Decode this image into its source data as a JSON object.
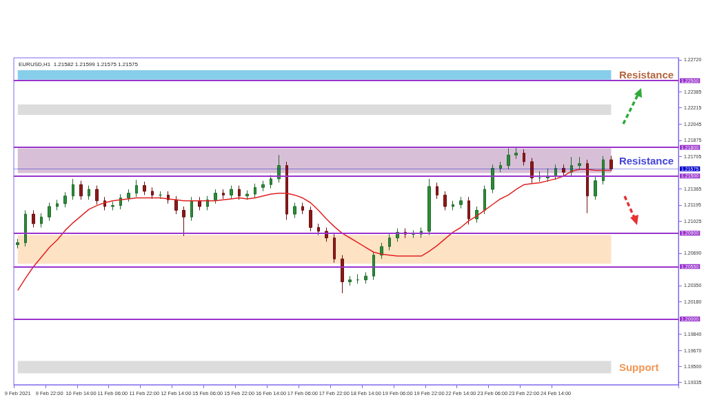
{
  "chart_data": {
    "type": "candlestick",
    "title": "EURUSD,H1  1.21582 1.21599 1.21575 1.21575",
    "categories": [
      "9 Feb 2021",
      null,
      null,
      null,
      "9 Feb 22:00",
      null,
      null,
      null,
      "10 Feb 14:00",
      null,
      null,
      null,
      "11 Feb 06:00",
      null,
      null,
      null,
      "11 Feb 22:00",
      null,
      null,
      null,
      "12 Feb 14:00",
      null,
      null,
      null,
      "15 Feb 06:00",
      null,
      null,
      null,
      "15 Feb 22:00",
      null,
      null,
      null,
      "16 Feb 14:00",
      null,
      null,
      null,
      "17 Feb 06:00",
      null,
      null,
      null,
      "17 Feb 22:00",
      null,
      null,
      null,
      "18 Feb 14:00",
      null,
      null,
      null,
      "19 Feb 06:00",
      null,
      null,
      null,
      "19 Feb 22:00",
      null,
      null,
      null,
      "22 Feb 14:00",
      null,
      null,
      null,
      "23 Feb 06:00",
      null,
      null,
      null,
      "23 Feb 22:00",
      null,
      null,
      null,
      "24 Feb 14:00",
      null,
      null,
      null,
      null,
      null,
      null,
      null,
      null,
      null,
      null,
      null,
      null,
      null,
      null,
      null
    ],
    "ohlc": [
      [
        1.2078,
        1.2084,
        1.2074,
        1.208
      ],
      [
        1.208,
        1.2114,
        1.2076,
        1.211
      ],
      [
        1.211,
        1.2114,
        1.2096,
        1.21
      ],
      [
        1.21,
        1.2111,
        1.2096,
        1.2107
      ],
      [
        1.2107,
        1.2122,
        1.2103,
        1.2118
      ],
      [
        1.2118,
        1.2125,
        1.2114,
        1.2121
      ],
      [
        1.2121,
        1.2133,
        1.2117,
        1.2129
      ],
      [
        1.2129,
        1.2147,
        1.2125,
        1.2141
      ],
      [
        1.2141,
        1.2145,
        1.2125,
        1.2129
      ],
      [
        1.2129,
        1.214,
        1.2125,
        1.2136
      ],
      [
        1.2136,
        1.214,
        1.212,
        1.2124
      ],
      [
        1.2124,
        1.2128,
        1.2114,
        1.2118
      ],
      [
        1.2118,
        1.2123,
        1.2114,
        1.2119
      ],
      [
        1.2119,
        1.2131,
        1.2115,
        1.2127
      ],
      [
        1.2127,
        1.2136,
        1.2123,
        1.2132
      ],
      [
        1.2132,
        1.2146,
        1.2128,
        1.214
      ],
      [
        1.214,
        1.2144,
        1.213,
        1.2134
      ],
      [
        1.2134,
        1.2138,
        1.2126,
        1.213
      ],
      [
        1.213,
        1.2134,
        1.2126,
        1.213
      ],
      [
        1.213,
        1.2134,
        1.2121,
        1.2125
      ],
      [
        1.2125,
        1.2129,
        1.211,
        1.2114
      ],
      [
        1.2114,
        1.2118,
        1.2087,
        1.2107
      ],
      [
        1.2107,
        1.2128,
        1.2103,
        1.2124
      ],
      [
        1.2124,
        1.2128,
        1.2114,
        1.2118
      ],
      [
        1.2118,
        1.2129,
        1.2114,
        1.2125
      ],
      [
        1.2125,
        1.2136,
        1.2121,
        1.2132
      ],
      [
        1.2132,
        1.2136,
        1.2126,
        1.213
      ],
      [
        1.213,
        1.214,
        1.2126,
        1.2136
      ],
      [
        1.2136,
        1.214,
        1.2125,
        1.2129
      ],
      [
        1.2129,
        1.2135,
        1.2125,
        1.2131
      ],
      [
        1.2131,
        1.2142,
        1.2127,
        1.2138
      ],
      [
        1.2138,
        1.2145,
        1.2134,
        1.2141
      ],
      [
        1.2141,
        1.2151,
        1.2137,
        1.2147
      ],
      [
        1.2147,
        1.2172,
        1.2143,
        1.2161
      ],
      [
        1.2161,
        1.2165,
        1.2104,
        1.211
      ],
      [
        1.211,
        1.2122,
        1.2106,
        1.2118
      ],
      [
        1.2118,
        1.2122,
        1.211,
        1.2114
      ],
      [
        1.2114,
        1.2118,
        1.2092,
        1.2096
      ],
      [
        1.2096,
        1.21,
        1.2088,
        1.2092
      ],
      [
        1.2092,
        1.2096,
        1.2081,
        1.2085
      ],
      [
        1.2085,
        1.2089,
        1.2059,
        1.2063
      ],
      [
        1.2063,
        1.2067,
        1.2027,
        1.2039
      ],
      [
        1.2039,
        1.2045,
        1.2035,
        1.2041
      ],
      [
        1.2041,
        1.2047,
        1.2037,
        1.2041
      ],
      [
        1.2041,
        1.2049,
        1.2037,
        1.2045
      ],
      [
        1.2045,
        1.2071,
        1.2041,
        1.2067
      ],
      [
        1.2067,
        1.208,
        1.2063,
        1.2076
      ],
      [
        1.2076,
        1.2089,
        1.2072,
        1.2085
      ],
      [
        1.2085,
        1.2095,
        1.2081,
        1.2091
      ],
      [
        1.2091,
        1.2095,
        1.2085,
        1.2089
      ],
      [
        1.2089,
        1.2093,
        1.2085,
        1.2089
      ],
      [
        1.2089,
        1.2096,
        1.2085,
        1.2092
      ],
      [
        1.2092,
        1.2147,
        1.2088,
        1.2139
      ],
      [
        1.2139,
        1.2143,
        1.2126,
        1.213
      ],
      [
        1.213,
        1.2134,
        1.2114,
        1.2118
      ],
      [
        1.2118,
        1.2124,
        1.2114,
        1.212
      ],
      [
        1.212,
        1.2128,
        1.2116,
        1.2124
      ],
      [
        1.2124,
        1.2128,
        1.2099,
        1.2105
      ],
      [
        1.2105,
        1.2118,
        1.2101,
        1.2114
      ],
      [
        1.2114,
        1.214,
        1.211,
        1.2136
      ],
      [
        1.2136,
        1.2162,
        1.2132,
        1.2158
      ],
      [
        1.2158,
        1.2165,
        1.2154,
        1.2161
      ],
      [
        1.2161,
        1.2179,
        1.2157,
        1.2172
      ],
      [
        1.2172,
        1.218,
        1.2168,
        1.2174
      ],
      [
        1.2174,
        1.2178,
        1.2161,
        1.2165
      ],
      [
        1.2165,
        1.2169,
        1.2142,
        1.2148
      ],
      [
        1.2148,
        1.2155,
        1.2144,
        1.2148
      ],
      [
        1.2148,
        1.2158,
        1.2144,
        1.215
      ],
      [
        1.215,
        1.2162,
        1.2146,
        1.2158
      ],
      [
        1.2158,
        1.2162,
        1.215,
        1.2154
      ],
      [
        1.2154,
        1.217,
        1.215,
        1.2161
      ],
      [
        1.2161,
        1.217,
        1.2157,
        1.2163
      ],
      [
        1.2163,
        1.2167,
        1.2111,
        1.2129
      ],
      [
        1.2129,
        1.2149,
        1.2125,
        1.2145
      ],
      [
        1.2145,
        1.2171,
        1.2141,
        1.2167
      ],
      [
        1.2167,
        1.2171,
        1.2155,
        1.21575
      ],
      null,
      null,
      null,
      null,
      null,
      null,
      null,
      null
    ],
    "series": [
      {
        "type": "line",
        "color": "#e02020",
        "values": [
          1.203,
          1.2043,
          1.2055,
          1.2065,
          1.2075,
          1.2083,
          1.2093,
          1.2101,
          1.2108,
          1.2115,
          1.2119,
          1.2122,
          1.2124,
          1.2125,
          1.2126,
          1.2127,
          1.2127,
          1.2127,
          1.2127,
          1.2126,
          1.2125,
          1.2124,
          1.2124,
          1.2124,
          1.2124,
          1.2124,
          1.2125,
          1.2126,
          1.2127,
          1.2126,
          1.2127,
          1.2129,
          1.2131,
          1.2132,
          1.2132,
          1.213,
          1.2127,
          1.2122,
          1.2114,
          1.2105,
          1.2097,
          1.209,
          1.2085,
          1.208,
          1.2075,
          1.207,
          1.2068,
          1.2067,
          1.2066,
          1.2066,
          1.2066,
          1.2066,
          1.2071,
          1.2077,
          1.2084,
          1.2091,
          1.2096,
          1.2103,
          1.2108,
          1.2114,
          1.212,
          1.2126,
          1.213,
          1.2136,
          1.2141,
          1.2142,
          1.2143,
          1.2145,
          1.2147,
          1.215,
          1.2155,
          1.2157,
          1.2157,
          1.2156,
          1.2156,
          1.2156,
          null,
          null,
          null,
          null,
          null,
          null,
          null,
          null
        ]
      }
    ],
    "ylim": [
      1.1931,
      1.2274
    ],
    "yticks": [
      {
        "value": 1.2272,
        "label": "1.22720"
      },
      1.22385,
      1.22215,
      1.22045,
      1.21875,
      1.21705,
      1.21365,
      1.21195,
      1.21025,
      {
        "value": 1.2069,
        "label": "1.20690"
      },
      {
        "value": 1.2035,
        "label": "1.20350"
      },
      {
        "value": 1.2018,
        "label": "1.20180"
      },
      {
        "value": 1.1984,
        "label": "1.19840"
      },
      {
        "value": 1.1967,
        "label": "1.19670"
      },
      {
        "value": 1.195,
        "label": "1.19500"
      },
      1.19335
    ],
    "bands": [
      {
        "axis": "y",
        "from": 1.2251,
        "to": 1.2261,
        "label": "Resistance",
        "color": "#87ceeb"
      },
      {
        "axis": "y",
        "from": 1.2214,
        "to": 1.2225,
        "color": "#dcdcdc"
      },
      {
        "axis": "y",
        "from": 1.2153,
        "to": 1.2179,
        "label": "Resistance",
        "color": "#d8bfd8"
      },
      {
        "axis": "y",
        "from": 1.2058,
        "to": 1.2088,
        "color": "#fde2c4"
      },
      {
        "axis": "y",
        "from": 1.1943,
        "to": 1.1956,
        "label": "Support",
        "color": "#dcdcdc"
      }
    ],
    "ref_lines": [
      {
        "axis": "y",
        "value": 1.225,
        "label": "1.22500",
        "color": "#9932cc"
      },
      {
        "axis": "y",
        "value": 1.218,
        "label": "1.21800",
        "color": "#9932cc"
      },
      {
        "axis": "y",
        "value": 1.215,
        "label": "1.21500",
        "color": "#9932cc"
      },
      {
        "axis": "y",
        "value": 1.209,
        "label": "1.20900",
        "color": "#9932cc"
      },
      {
        "axis": "y",
        "value": 1.2055,
        "label": "1.20550",
        "color": "#9932cc"
      },
      {
        "axis": "y",
        "value": 1.2,
        "label": "1.20000",
        "color": "#9932cc"
      },
      {
        "axis": "y",
        "value": 1.21575,
        "label": "1.21575",
        "color": "#0000cd"
      }
    ],
    "grid": false
  }
}
